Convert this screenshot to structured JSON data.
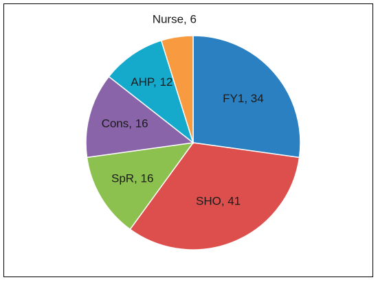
{
  "chart_data": {
    "type": "pie",
    "categories": [
      "FY1",
      "SHO",
      "SpR",
      "Cons",
      "AHP",
      "Nurse"
    ],
    "values": [
      34,
      41,
      16,
      16,
      12,
      6
    ],
    "labels": [
      "FY1, 34",
      "SHO, 41",
      "SpR, 16",
      "Cons, 16",
      "AHP, 12",
      "Nurse, 6"
    ],
    "colors": [
      "#2b80c2",
      "#dd4f4c",
      "#8cc04f",
      "#8a64a8",
      "#15aacc",
      "#f79a40"
    ],
    "start": "top",
    "direction": "clockwise",
    "legend": "none"
  }
}
